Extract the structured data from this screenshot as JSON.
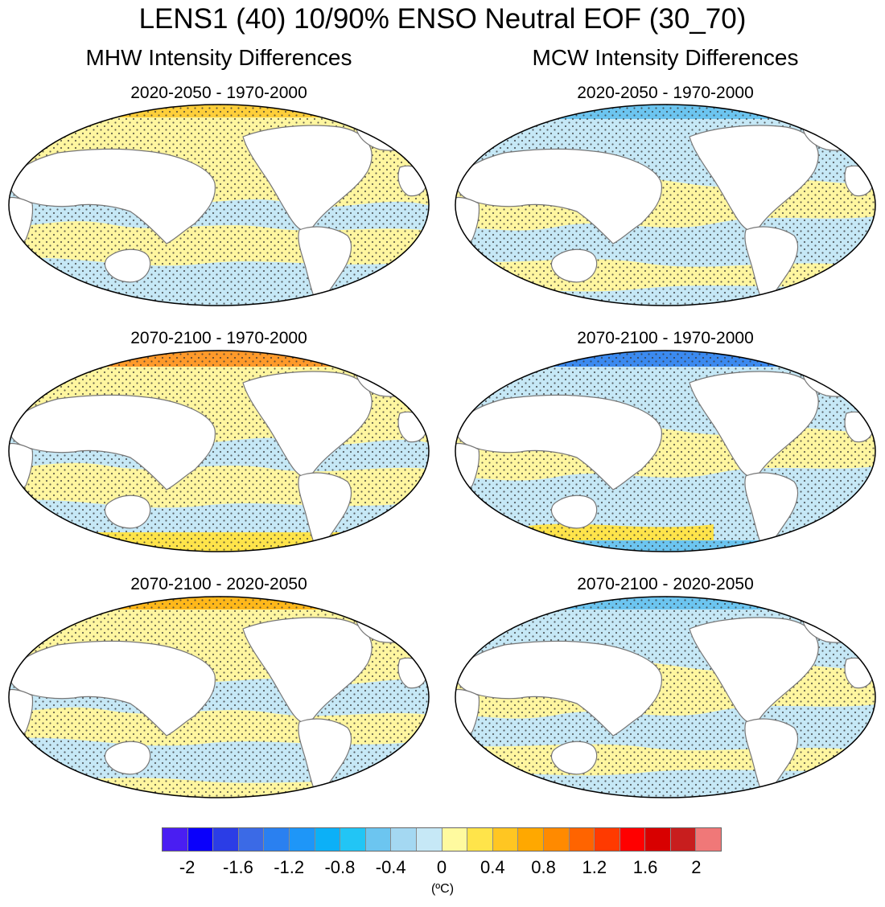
{
  "title": "LENS1 (40) 10/90% ENSO Neutral EOF (30_70)",
  "columns": [
    {
      "title": "MHW Intensity Differences",
      "panels": [
        {
          "title": "2020-2050 - 1970-2000"
        },
        {
          "title": "2070-2100 - 1970-2000"
        },
        {
          "title": "2070-2100 - 2020-2050"
        }
      ]
    },
    {
      "title": "MCW Intensity Differences",
      "panels": [
        {
          "title": "2020-2050 - 1970-2000"
        },
        {
          "title": "2070-2100 - 1970-2000"
        },
        {
          "title": "2070-2100 - 2020-2050"
        }
      ]
    }
  ],
  "colorbar": {
    "colors": [
      "#4a1ef2",
      "#0a00fb",
      "#2b3de6",
      "#3b6ae6",
      "#2a80f0",
      "#1e96f8",
      "#0cb0f7",
      "#22c5f5",
      "#6cc5f0",
      "#a4d8f2",
      "#c6e8f6",
      "#fffa9f",
      "#ffe44a",
      "#ffc622",
      "#ffa800",
      "#ff8a00",
      "#ff6400",
      "#ff3a00",
      "#ff0000",
      "#d80000",
      "#c81e1e",
      "#f07878"
    ],
    "ticks": [
      "-2",
      "-1.6",
      "-1.2",
      "-0.8",
      "-0.4",
      "0",
      "0.4",
      "0.8",
      "1.2",
      "1.6",
      "2"
    ],
    "unit": "(ºC)"
  }
}
